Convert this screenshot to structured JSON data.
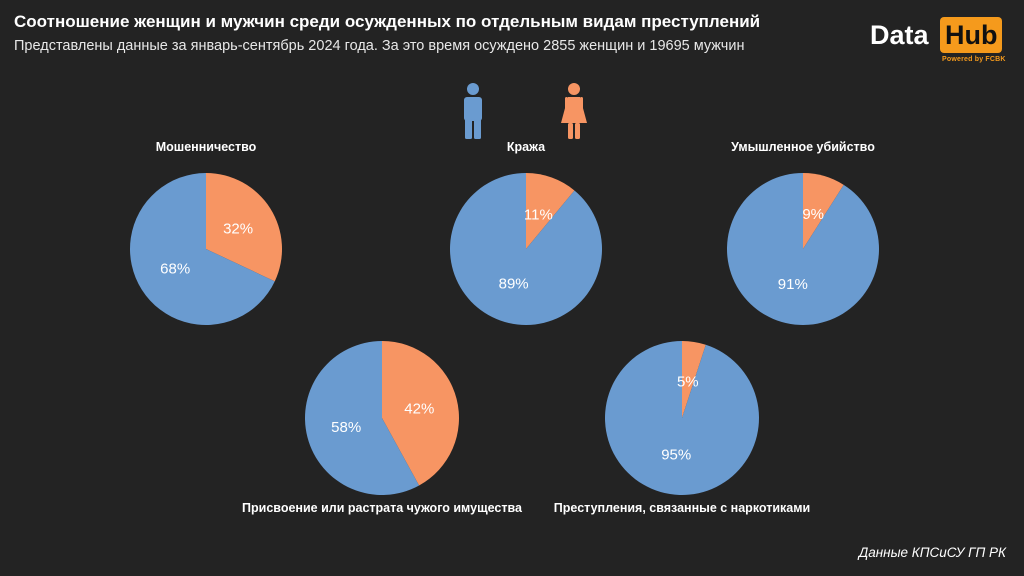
{
  "header": {
    "title": "Соотношение женщин и мужчин среди осужденных по отдельным видам преступлений",
    "subtitle": "Представлены данные за январь-сентябрь 2024 года. За это время осуждено 2855 женщин и 19695 мужчин"
  },
  "logo": {
    "data_text": "Data",
    "hub_text": "Hub",
    "powered_text": "Powered by FCBK"
  },
  "legend": {
    "male_icon": "male-person-icon",
    "female_icon": "female-person-icon"
  },
  "colors": {
    "male": "#6a9bd0",
    "female": "#f79563",
    "accent": "#f59a1c"
  },
  "chart_data": [
    {
      "type": "pie",
      "title": "Мошенничество",
      "categories": [
        "Мужчины",
        "Женщины"
      ],
      "values": [
        68,
        32
      ],
      "labels": [
        "68%",
        "32%"
      ]
    },
    {
      "type": "pie",
      "title": "Кража",
      "categories": [
        "Мужчины",
        "Женщины"
      ],
      "values": [
        89,
        11
      ],
      "labels": [
        "89%",
        "11%"
      ]
    },
    {
      "type": "pie",
      "title": "Умышленное убийство",
      "categories": [
        "Мужчины",
        "Женщины"
      ],
      "values": [
        91,
        9
      ],
      "labels": [
        "91%",
        "9%"
      ]
    },
    {
      "type": "pie",
      "title": "Присвоение или растрата чужого имущества",
      "categories": [
        "Мужчины",
        "Женщины"
      ],
      "values": [
        58,
        42
      ],
      "labels": [
        "58%",
        "42%"
      ]
    },
    {
      "type": "pie",
      "title": "Преступления, связанные с наркотиками",
      "categories": [
        "Мужчины",
        "Женщины"
      ],
      "values": [
        95,
        5
      ],
      "labels": [
        "95%",
        "5%"
      ]
    }
  ],
  "footer": {
    "source": "Данные КПСиСУ ГП РК"
  }
}
